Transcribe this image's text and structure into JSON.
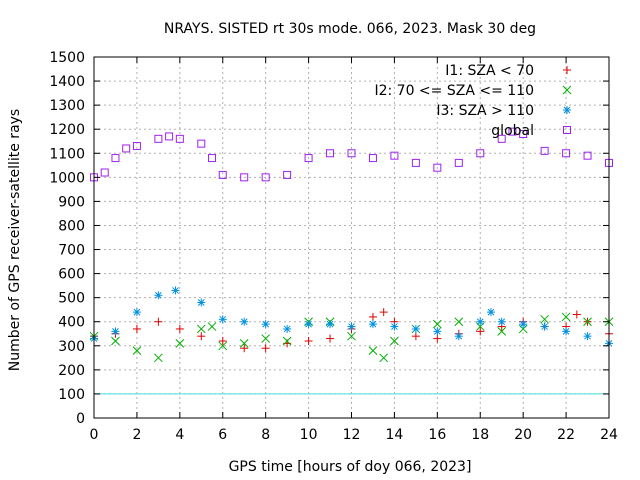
{
  "chart_data": {
    "type": "scatter",
    "title": "NRAYS. SISTED rt 30s mode. 066, 2023. Mask 30 deg",
    "xlabel": "GPS time [hours of doy 066, 2023]",
    "ylabel": "Number of GPS receiver-satellite rays",
    "xlim": [
      0,
      24
    ],
    "ylim": [
      0,
      1500
    ],
    "x_ticks": [
      "0",
      "2",
      "4",
      "6",
      "8",
      "10",
      "12",
      "14",
      "16",
      "18",
      "20",
      "22",
      "24"
    ],
    "y_ticks": [
      "0",
      "100",
      "200",
      "300",
      "400",
      "500",
      "600",
      "700",
      "800",
      "900",
      "1000",
      "1100",
      "1200",
      "1300",
      "1400",
      "1500"
    ],
    "grid": true,
    "legend_position": "top-right",
    "reference_line": {
      "y": 100,
      "color": "#40e0e0"
    },
    "series": [
      {
        "name": "I1: SZA < 70",
        "marker": "plus",
        "color": "#e00000",
        "x": [
          0,
          1,
          2,
          3,
          4,
          5,
          6,
          7,
          8,
          9,
          10,
          11,
          12,
          13,
          13.5,
          14,
          15,
          16,
          17,
          18,
          19,
          20,
          21,
          22,
          22.5,
          23,
          24
        ],
        "values": [
          340,
          350,
          370,
          400,
          370,
          340,
          320,
          290,
          290,
          310,
          320,
          330,
          370,
          420,
          440,
          400,
          340,
          330,
          350,
          360,
          380,
          400,
          380,
          380,
          430,
          400,
          350
        ]
      },
      {
        "name": "I2: 70 <= SZA <= 110",
        "marker": "cross",
        "color": "#00b000",
        "x": [
          0,
          1,
          2,
          3,
          4,
          5,
          5.5,
          6,
          7,
          8,
          9,
          10,
          11,
          12,
          13,
          13.5,
          14,
          15,
          16,
          17,
          18,
          19,
          20,
          21,
          22,
          23,
          24
        ],
        "values": [
          340,
          320,
          280,
          250,
          310,
          370,
          380,
          300,
          310,
          330,
          320,
          400,
          400,
          340,
          280,
          250,
          320,
          370,
          390,
          400,
          380,
          360,
          370,
          410,
          420,
          400,
          400
        ]
      },
      {
        "name": "I3: SZA > 110",
        "marker": "star",
        "color": "#0090e0",
        "x": [
          0,
          1,
          2,
          3,
          3.8,
          5,
          6,
          7,
          8,
          9,
          10,
          11,
          12,
          13,
          14,
          15,
          16,
          17,
          18,
          18.5,
          19,
          20,
          21,
          22,
          23,
          24
        ],
        "values": [
          330,
          360,
          440,
          510,
          530,
          480,
          410,
          400,
          390,
          370,
          390,
          390,
          380,
          390,
          380,
          370,
          360,
          340,
          400,
          440,
          400,
          390,
          380,
          360,
          340,
          310
        ]
      },
      {
        "name": "global",
        "marker": "square",
        "color": "#a020f0",
        "x": [
          0,
          0.5,
          1,
          1.5,
          2,
          3,
          3.5,
          4,
          5,
          5.5,
          6,
          7,
          8,
          9,
          10,
          11,
          12,
          13,
          14,
          15,
          16,
          17,
          18,
          19,
          19.5,
          20,
          21,
          22,
          23,
          24
        ],
        "values": [
          1000,
          1020,
          1080,
          1120,
          1130,
          1160,
          1170,
          1160,
          1140,
          1080,
          1010,
          1000,
          1000,
          1010,
          1080,
          1100,
          1100,
          1080,
          1090,
          1060,
          1040,
          1060,
          1100,
          1160,
          1190,
          1180,
          1110,
          1100,
          1090,
          1060
        ]
      }
    ]
  }
}
